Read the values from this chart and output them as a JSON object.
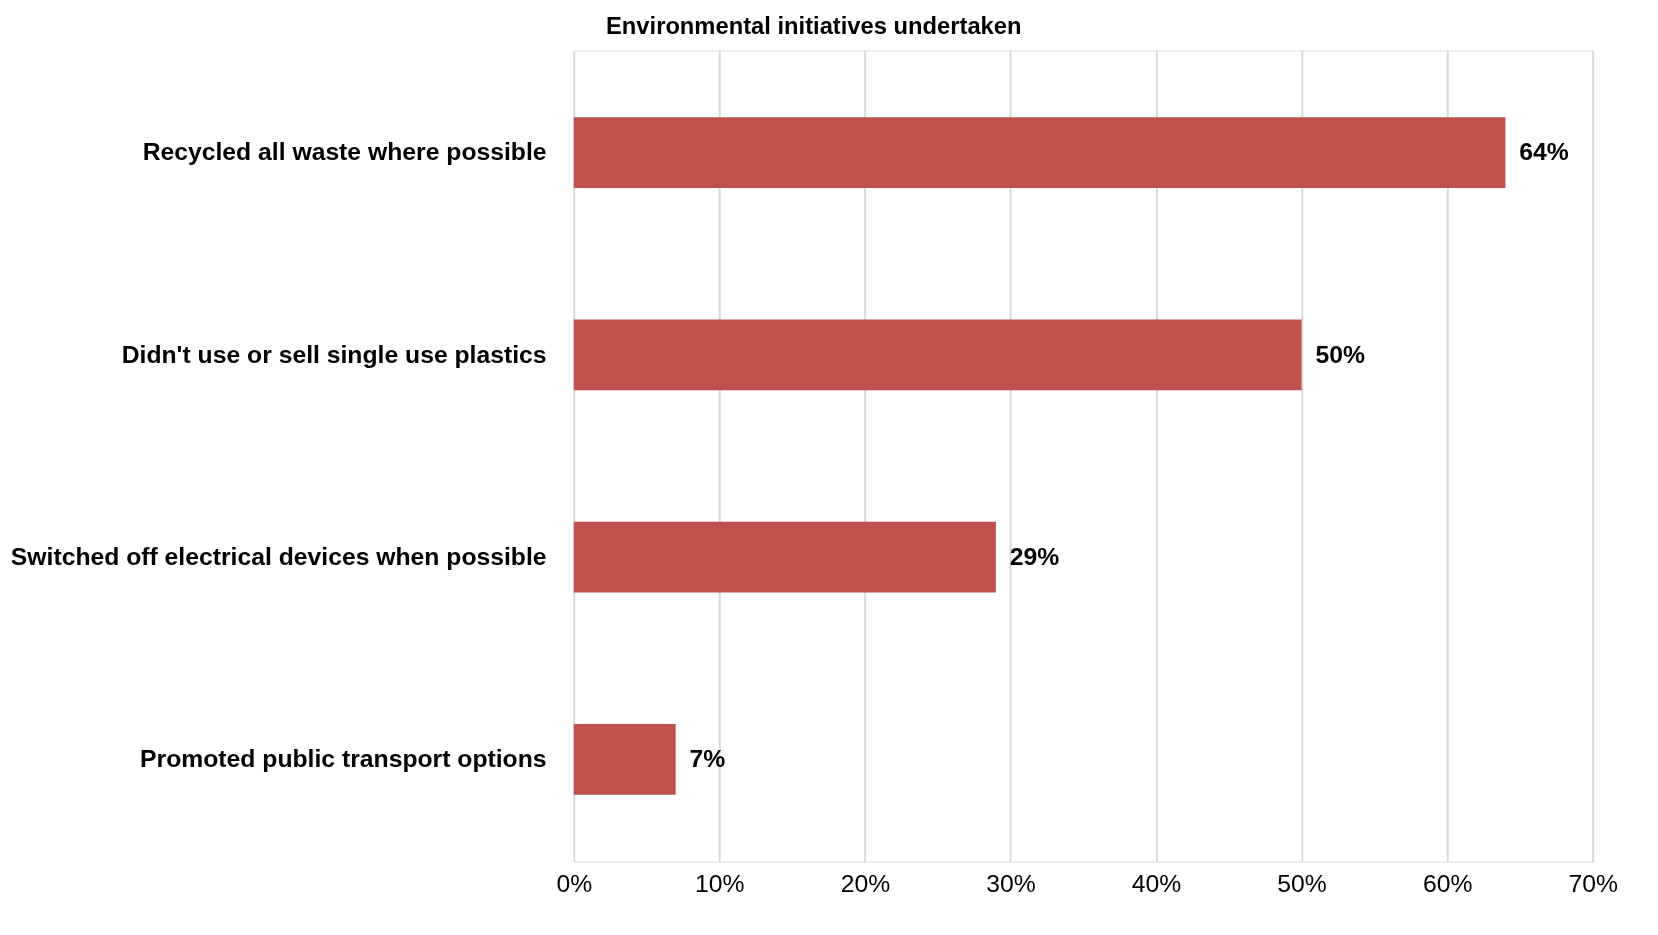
{
  "chart_data": {
    "type": "bar",
    "orientation": "horizontal",
    "title": "Environmental initiatives undertaken",
    "categories": [
      "Recycled all waste where possible",
      "Didn't use or sell single use plastics",
      "Switched off electrical devices when possible",
      "Promoted public transport options"
    ],
    "values": [
      64,
      50,
      29,
      7
    ],
    "value_labels": [
      "64%",
      "50%",
      "29%",
      "7%"
    ],
    "color": "#c0504d",
    "xlim": [
      0,
      70
    ],
    "xticks": [
      {
        "value": 0,
        "label": "0%"
      },
      {
        "value": 10,
        "label": "10%"
      },
      {
        "value": 20,
        "label": "20%"
      },
      {
        "value": 30,
        "label": "30%"
      },
      {
        "value": 40,
        "label": "40%"
      },
      {
        "value": 50,
        "label": "50%"
      },
      {
        "value": 60,
        "label": "60%"
      },
      {
        "value": 70,
        "label": "70%"
      }
    ],
    "grid": "x"
  }
}
